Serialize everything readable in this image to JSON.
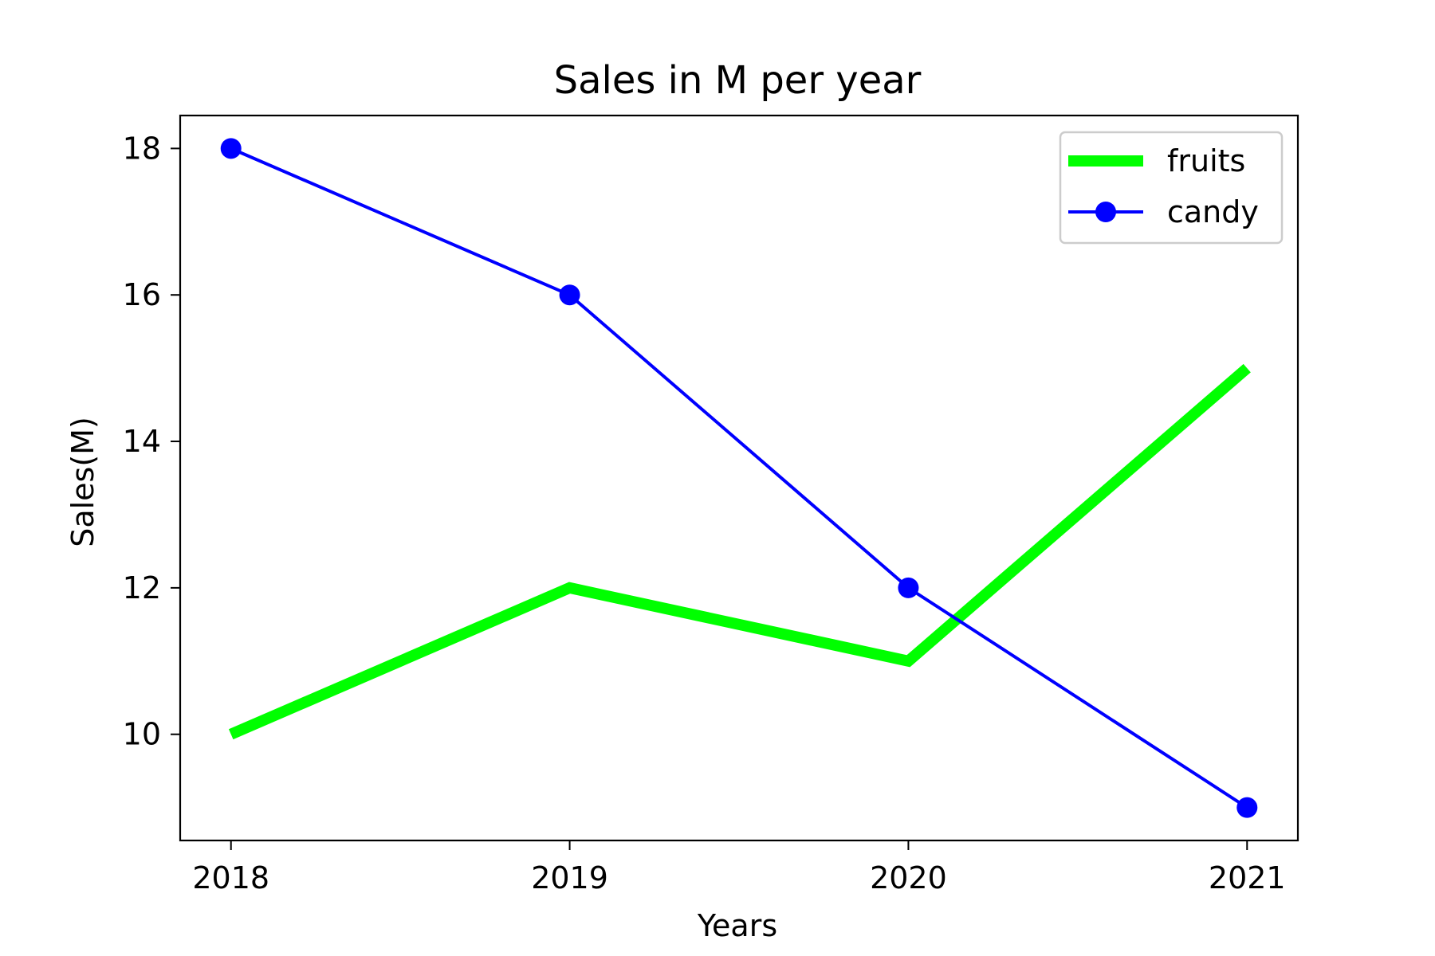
{
  "chart_data": {
    "type": "line",
    "title": "Sales in M per year",
    "xlabel": "Years",
    "ylabel": "Sales(M)",
    "x": [
      "2018",
      "2019",
      "2020",
      "2021"
    ],
    "xlim": [
      2017.85,
      2021.15
    ],
    "ylim": [
      8.55,
      18.45
    ],
    "yticks": [
      10,
      12,
      14,
      16,
      18
    ],
    "grid": false,
    "legend_position": "upper right",
    "series": [
      {
        "name": "fruits",
        "values": [
          10,
          12,
          11,
          15
        ],
        "color": "#00ff00",
        "line_style": "solid-thick",
        "marker": "none"
      },
      {
        "name": "candy",
        "values": [
          18,
          16,
          12,
          9
        ],
        "color": "#0000ff",
        "line_style": "solid",
        "marker": "circle"
      }
    ]
  }
}
